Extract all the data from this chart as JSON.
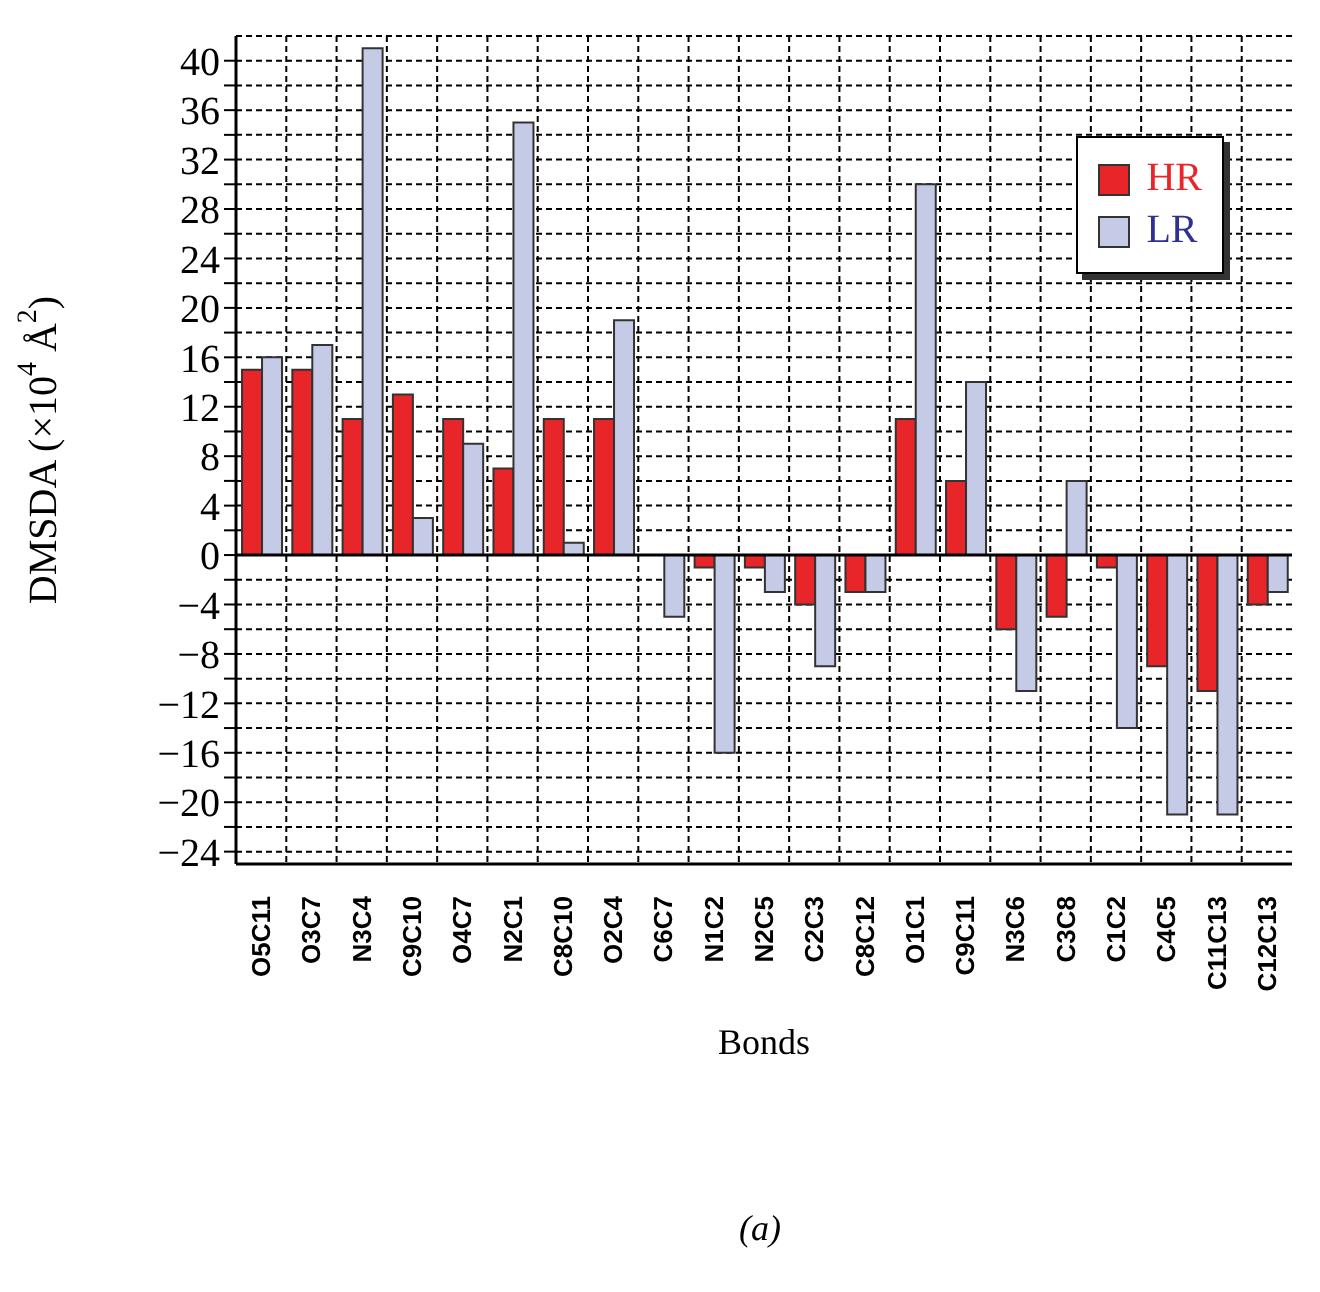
{
  "chart_data": {
    "type": "bar",
    "xlabel": "Bonds",
    "ylabel": "DMSDA (×10$^{4}$ Å$^{2}$)",
    "annotations": [
      "(a)"
    ],
    "categories": [
      "O5C11",
      "O3C7",
      "N3C4",
      "C9C10",
      "O4C7",
      "N2C1",
      "C8C10",
      "O2C4",
      "C6C7",
      "N1C2",
      "N2C5",
      "C2C3",
      "C8C12",
      "O1C1",
      "C9C11",
      "N3C6",
      "C3C8",
      "C1C2",
      "C4C5",
      "C11C13",
      "C12C13"
    ],
    "series": [
      {
        "name": "HR",
        "color": "#e8262a",
        "values": [
          15,
          15,
          11,
          13,
          11,
          7,
          11,
          11,
          0,
          -1,
          -1,
          -4,
          -3,
          11,
          6,
          -6,
          -5,
          -1,
          -9,
          -11,
          -4
        ]
      },
      {
        "name": "LR",
        "color": "#c5cbe6",
        "values": [
          16,
          17,
          41,
          3,
          9,
          35,
          1,
          19,
          -5,
          -16,
          -3,
          -9,
          -3,
          30,
          14,
          -11,
          6,
          -14,
          -21,
          -21,
          -3
        ]
      }
    ],
    "ylim": [
      -25,
      42
    ],
    "yticks": [
      {
        "value": -24,
        "label": "−24"
      },
      {
        "value": -22,
        "label": null
      },
      {
        "value": -20,
        "label": "−20"
      },
      {
        "value": -18,
        "label": null
      },
      {
        "value": -16,
        "label": "−16"
      },
      {
        "value": -14,
        "label": null
      },
      {
        "value": -12,
        "label": "−12"
      },
      {
        "value": -10,
        "label": null
      },
      {
        "value": -8,
        "label": "−8"
      },
      {
        "value": -6,
        "label": null
      },
      {
        "value": -4,
        "label": "−4"
      },
      {
        "value": -2,
        "label": null
      },
      0,
      {
        "value": 2,
        "label": null
      },
      4,
      {
        "value": 6,
        "label": null
      },
      8,
      {
        "value": 10,
        "label": null
      },
      12,
      {
        "value": 14,
        "label": null
      },
      16,
      {
        "value": 18,
        "label": null
      },
      20,
      {
        "value": 22,
        "label": null
      },
      24,
      {
        "value": 26,
        "label": null
      },
      28,
      {
        "value": 30,
        "label": null
      },
      32,
      {
        "value": 34,
        "label": null
      },
      36,
      {
        "value": 38,
        "label": null
      },
      40
    ],
    "grid": true,
    "legend": "top right"
  }
}
